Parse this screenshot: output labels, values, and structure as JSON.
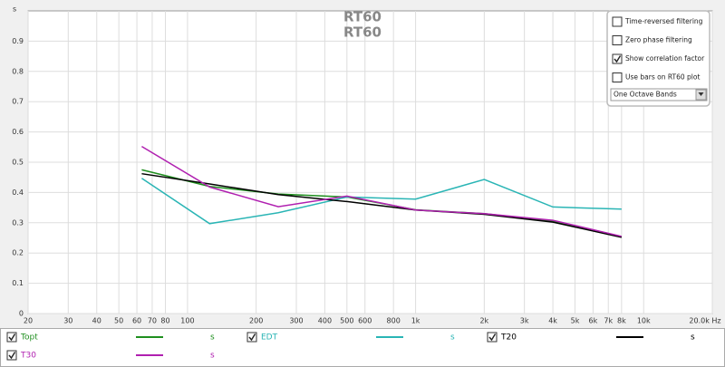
{
  "chart_data": {
    "type": "line",
    "title": "RT60",
    "subtitle": "RT60",
    "ylabel": "s",
    "xlog": true,
    "xlim": [
      20,
      20000
    ],
    "ylim": [
      0,
      1
    ],
    "grid": true,
    "xticks": [
      20,
      30,
      40,
      50,
      60,
      70,
      80,
      100,
      200,
      300,
      400,
      500,
      600,
      800,
      {
        "value": 1000,
        "label": "1k"
      },
      {
        "value": 2000,
        "label": "2k"
      },
      {
        "value": 3000,
        "label": "3k"
      },
      {
        "value": 4000,
        "label": "4k"
      },
      {
        "value": 5000,
        "label": "5k"
      },
      {
        "value": 6000,
        "label": "6k"
      },
      {
        "value": 7000,
        "label": "7k"
      },
      {
        "value": 8000,
        "label": "8k"
      },
      {
        "value": 10000,
        "label": "10k"
      },
      {
        "value": 20000,
        "label": "20.0k Hz"
      }
    ],
    "yticks": [
      0,
      0.1,
      0.2,
      0.3,
      0.4,
      0.5,
      0.6,
      0.7,
      0.8,
      0.9
    ],
    "x": [
      63,
      125,
      250,
      500,
      1000,
      2000,
      4000,
      8000
    ],
    "series": [
      {
        "name": "Topt",
        "color": "#1f8f1f",
        "unit": "s",
        "checked": true,
        "values": [
          0.475,
          0.42,
          0.395,
          0.385,
          0.343,
          0.33,
          0.305,
          0.253
        ]
      },
      {
        "name": "EDT",
        "color": "#2ab5b5",
        "unit": "s",
        "checked": true,
        "values": [
          0.447,
          0.297,
          0.333,
          0.385,
          0.378,
          0.443,
          0.352,
          0.345
        ]
      },
      {
        "name": "T20",
        "color": "#000000",
        "unit": "s",
        "checked": true,
        "values": [
          0.462,
          0.428,
          0.393,
          0.37,
          0.342,
          0.328,
          0.302,
          0.252
        ]
      },
      {
        "name": "T30",
        "color": "#b020b0",
        "unit": "s",
        "checked": true,
        "values": [
          0.552,
          0.418,
          0.353,
          0.388,
          0.342,
          0.33,
          0.308,
          0.255
        ]
      }
    ]
  },
  "controls": [
    {
      "label": "Time-reversed filtering",
      "checked": false
    },
    {
      "label": "Zero phase filtering",
      "checked": false
    },
    {
      "label": "Show correlation factor",
      "checked": true
    },
    {
      "label": "Use bars on RT60 plot",
      "checked": false
    }
  ],
  "dropdown": "One Octave Bands"
}
